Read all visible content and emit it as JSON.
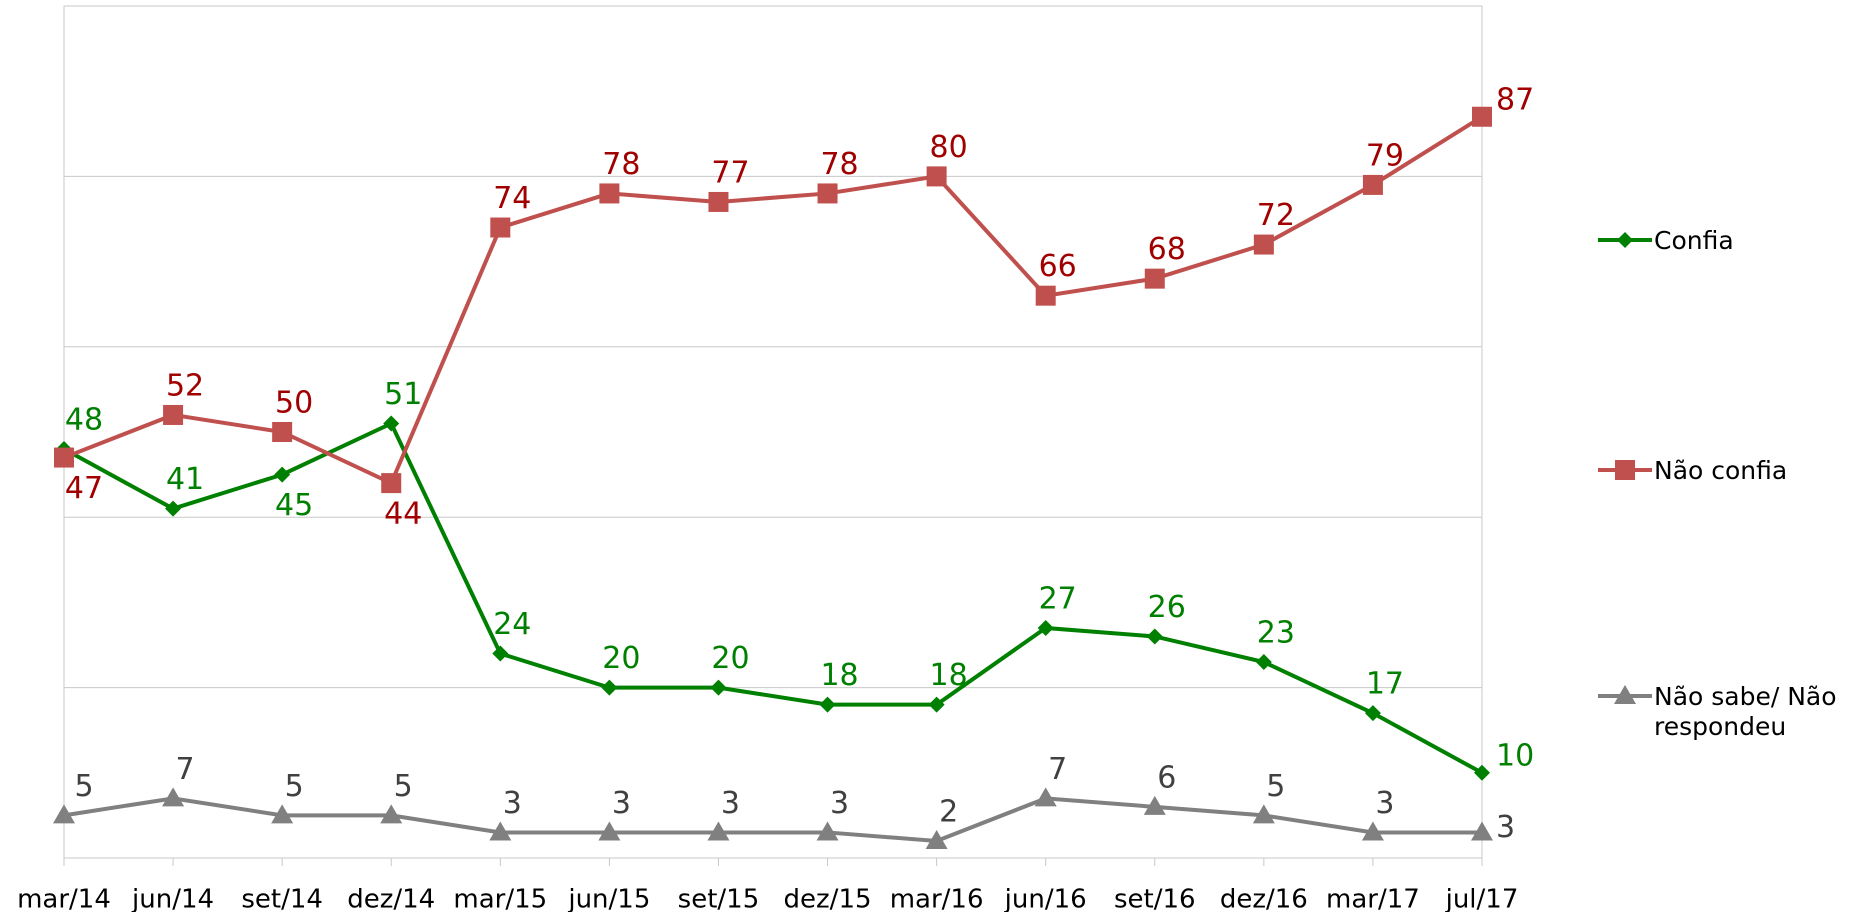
{
  "chart_data": {
    "type": "line",
    "categories": [
      "mar/14",
      "jun/14",
      "set/14",
      "dez/14",
      "mar/15",
      "jun/15",
      "set/15",
      "dez/15",
      "mar/16",
      "jun/16",
      "set/16",
      "dez/16",
      "mar/17",
      "jul/17"
    ],
    "series": [
      {
        "name": "Confia",
        "color": "#008000",
        "marker": "diamond",
        "values": [
          48,
          41,
          45,
          51,
          24,
          20,
          20,
          18,
          18,
          27,
          26,
          23,
          17,
          10
        ]
      },
      {
        "name": "Não confia",
        "color": "#c0504d",
        "marker": "square",
        "values": [
          47,
          52,
          50,
          44,
          74,
          78,
          77,
          78,
          80,
          66,
          68,
          72,
          79,
          87
        ]
      },
      {
        "name": "Não sabe/ Não respondeu",
        "color": "#808080",
        "marker": "triangle",
        "values": [
          5,
          7,
          5,
          5,
          3,
          3,
          3,
          3,
          2,
          7,
          6,
          5,
          3,
          3
        ]
      }
    ],
    "ylim": [
      0,
      100
    ],
    "yticks": [
      0,
      20,
      40,
      60,
      80,
      100
    ],
    "grid": true,
    "legend": "right"
  }
}
